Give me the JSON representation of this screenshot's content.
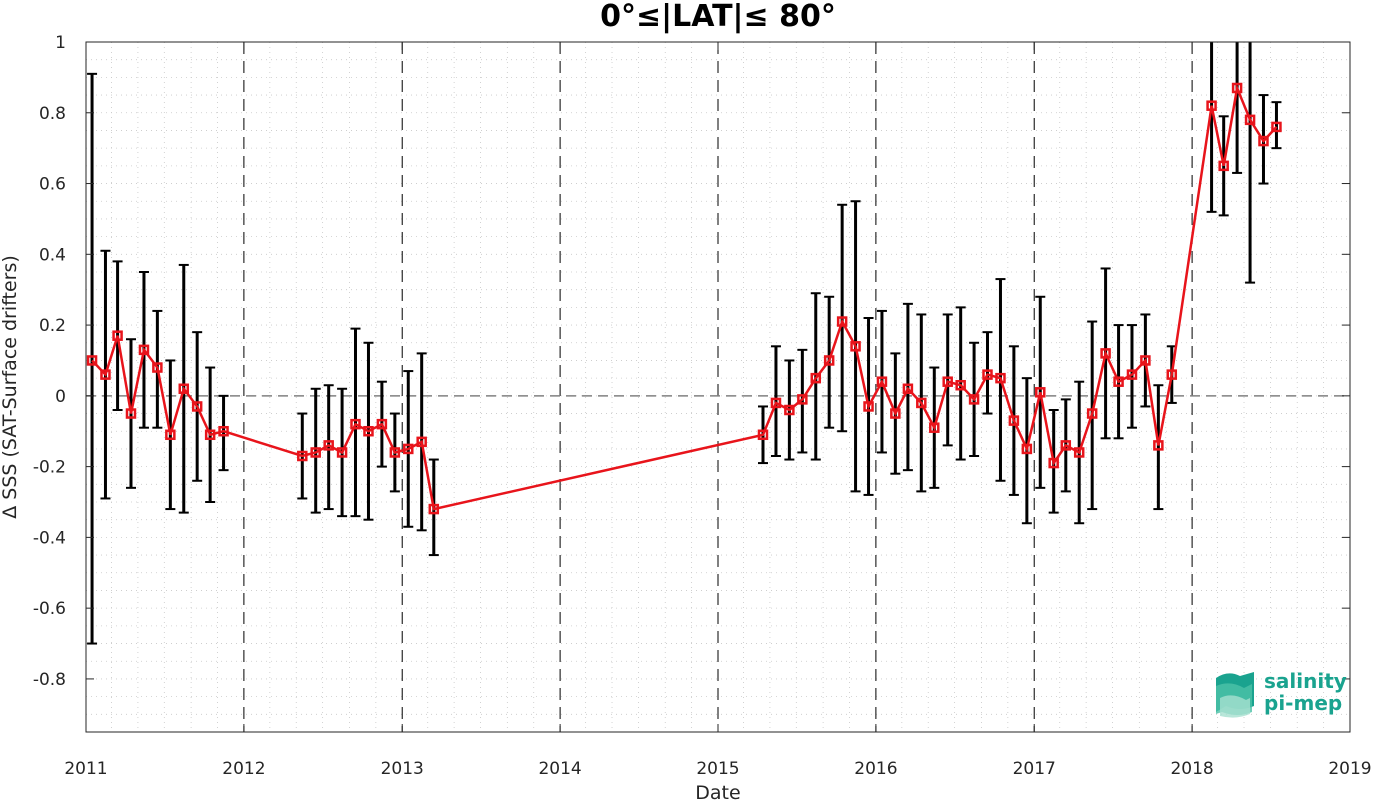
{
  "chart_data": {
    "type": "line",
    "title": "0°≤|LAT|≤ 80°",
    "xlabel": "Date",
    "ylabel": "Δ SSS (SAT-Surface drifters)",
    "xlim": [
      "2011-01-01",
      "2019-01-01"
    ],
    "ylim": [
      -0.95,
      1.0
    ],
    "x_ticks": [
      "2011",
      "2012",
      "2013",
      "2014",
      "2015",
      "2016",
      "2017",
      "2018",
      "2019"
    ],
    "y_ticks": [
      "1",
      "0.8",
      "0.6",
      "0.4",
      "0.2",
      "0",
      "-0.2",
      "-0.4",
      "-0.6",
      "-0.8"
    ],
    "grid": true,
    "zero_line": true,
    "year_divider_lines": true,
    "series": [
      {
        "color": "#e8141b",
        "marker": "square",
        "error_bar_color": "#000000",
        "points": [
          {
            "x": "2011-01-15",
            "y": 0.1,
            "lo": -0.7,
            "hi": 0.91
          },
          {
            "x": "2011-02-15",
            "y": 0.06,
            "lo": -0.29,
            "hi": 0.41
          },
          {
            "x": "2011-03-15",
            "y": 0.17,
            "lo": -0.04,
            "hi": 0.38
          },
          {
            "x": "2011-04-15",
            "y": -0.05,
            "lo": -0.26,
            "hi": 0.16
          },
          {
            "x": "2011-05-15",
            "y": 0.13,
            "lo": -0.09,
            "hi": 0.35
          },
          {
            "x": "2011-06-15",
            "y": 0.08,
            "lo": -0.09,
            "hi": 0.24
          },
          {
            "x": "2011-07-15",
            "y": -0.11,
            "lo": -0.32,
            "hi": 0.1
          },
          {
            "x": "2011-08-15",
            "y": 0.02,
            "lo": -0.33,
            "hi": 0.37
          },
          {
            "x": "2011-09-15",
            "y": -0.03,
            "lo": -0.24,
            "hi": 0.18
          },
          {
            "x": "2011-10-15",
            "y": -0.11,
            "lo": -0.3,
            "hi": 0.08
          },
          {
            "x": "2011-11-15",
            "y": -0.1,
            "lo": -0.21,
            "hi": 0.0
          },
          {
            "x": "2012-05-15",
            "y": -0.17,
            "lo": -0.29,
            "hi": -0.05
          },
          {
            "x": "2012-06-15",
            "y": -0.16,
            "lo": -0.33,
            "hi": 0.02
          },
          {
            "x": "2012-07-15",
            "y": -0.14,
            "lo": -0.32,
            "hi": 0.03
          },
          {
            "x": "2012-08-15",
            "y": -0.16,
            "lo": -0.34,
            "hi": 0.02
          },
          {
            "x": "2012-09-15",
            "y": -0.08,
            "lo": -0.34,
            "hi": 0.19
          },
          {
            "x": "2012-10-15",
            "y": -0.1,
            "lo": -0.35,
            "hi": 0.15
          },
          {
            "x": "2012-11-15",
            "y": -0.08,
            "lo": -0.2,
            "hi": 0.04
          },
          {
            "x": "2012-12-15",
            "y": -0.16,
            "lo": -0.27,
            "hi": -0.05
          },
          {
            "x": "2013-01-15",
            "y": -0.15,
            "lo": -0.37,
            "hi": 0.07
          },
          {
            "x": "2013-02-15",
            "y": -0.13,
            "lo": -0.38,
            "hi": 0.12
          },
          {
            "x": "2013-03-15",
            "y": -0.32,
            "lo": -0.45,
            "hi": -0.18
          },
          {
            "x": "2015-04-15",
            "y": -0.11,
            "lo": -0.19,
            "hi": -0.03
          },
          {
            "x": "2015-05-15",
            "y": -0.02,
            "lo": -0.17,
            "hi": 0.14
          },
          {
            "x": "2015-06-15",
            "y": -0.04,
            "lo": -0.18,
            "hi": 0.1
          },
          {
            "x": "2015-07-15",
            "y": -0.01,
            "lo": -0.16,
            "hi": 0.13
          },
          {
            "x": "2015-08-15",
            "y": 0.05,
            "lo": -0.18,
            "hi": 0.29
          },
          {
            "x": "2015-09-15",
            "y": 0.1,
            "lo": -0.09,
            "hi": 0.28
          },
          {
            "x": "2015-10-15",
            "y": 0.21,
            "lo": -0.1,
            "hi": 0.54
          },
          {
            "x": "2015-11-15",
            "y": 0.14,
            "lo": -0.27,
            "hi": 0.55
          },
          {
            "x": "2015-12-15",
            "y": -0.03,
            "lo": -0.28,
            "hi": 0.22
          },
          {
            "x": "2016-01-15",
            "y": 0.04,
            "lo": -0.16,
            "hi": 0.24
          },
          {
            "x": "2016-02-15",
            "y": -0.05,
            "lo": -0.22,
            "hi": 0.12
          },
          {
            "x": "2016-03-15",
            "y": 0.02,
            "lo": -0.21,
            "hi": 0.26
          },
          {
            "x": "2016-04-15",
            "y": -0.02,
            "lo": -0.27,
            "hi": 0.23
          },
          {
            "x": "2016-05-15",
            "y": -0.09,
            "lo": -0.26,
            "hi": 0.08
          },
          {
            "x": "2016-06-15",
            "y": 0.04,
            "lo": -0.14,
            "hi": 0.23
          },
          {
            "x": "2016-07-15",
            "y": 0.03,
            "lo": -0.18,
            "hi": 0.25
          },
          {
            "x": "2016-08-15",
            "y": -0.01,
            "lo": -0.17,
            "hi": 0.15
          },
          {
            "x": "2016-09-15",
            "y": 0.06,
            "lo": -0.05,
            "hi": 0.18
          },
          {
            "x": "2016-10-15",
            "y": 0.05,
            "lo": -0.24,
            "hi": 0.33
          },
          {
            "x": "2016-11-15",
            "y": -0.07,
            "lo": -0.28,
            "hi": 0.14
          },
          {
            "x": "2016-12-15",
            "y": -0.15,
            "lo": -0.36,
            "hi": 0.05
          },
          {
            "x": "2017-01-15",
            "y": 0.01,
            "lo": -0.26,
            "hi": 0.28
          },
          {
            "x": "2017-02-15",
            "y": -0.19,
            "lo": -0.33,
            "hi": -0.04
          },
          {
            "x": "2017-03-15",
            "y": -0.14,
            "lo": -0.27,
            "hi": -0.01
          },
          {
            "x": "2017-04-15",
            "y": -0.16,
            "lo": -0.36,
            "hi": 0.04
          },
          {
            "x": "2017-05-15",
            "y": -0.05,
            "lo": -0.32,
            "hi": 0.21
          },
          {
            "x": "2017-06-15",
            "y": 0.12,
            "lo": -0.12,
            "hi": 0.36
          },
          {
            "x": "2017-07-15",
            "y": 0.04,
            "lo": -0.12,
            "hi": 0.2
          },
          {
            "x": "2017-08-15",
            "y": 0.06,
            "lo": -0.09,
            "hi": 0.2
          },
          {
            "x": "2017-09-15",
            "y": 0.1,
            "lo": -0.03,
            "hi": 0.23
          },
          {
            "x": "2017-10-15",
            "y": -0.14,
            "lo": -0.32,
            "hi": 0.03
          },
          {
            "x": "2017-11-15",
            "y": 0.06,
            "lo": -0.02,
            "hi": 0.14
          },
          {
            "x": "2018-02-15",
            "y": 0.82,
            "lo": 0.52,
            "hi": 1.05
          },
          {
            "x": "2018-03-15",
            "y": 0.65,
            "lo": 0.51,
            "hi": 0.79
          },
          {
            "x": "2018-04-15",
            "y": 0.87,
            "lo": 0.63,
            "hi": 1.05
          },
          {
            "x": "2018-05-15",
            "y": 0.78,
            "lo": 0.32,
            "hi": 1.05
          },
          {
            "x": "2018-06-15",
            "y": 0.72,
            "lo": 0.6,
            "hi": 0.85
          },
          {
            "x": "2018-07-15",
            "y": 0.76,
            "lo": 0.7,
            "hi": 0.83
          }
        ]
      }
    ]
  },
  "logo": {
    "line1": "salinity",
    "line2": "pi-mep",
    "color": "#1aa38f"
  }
}
